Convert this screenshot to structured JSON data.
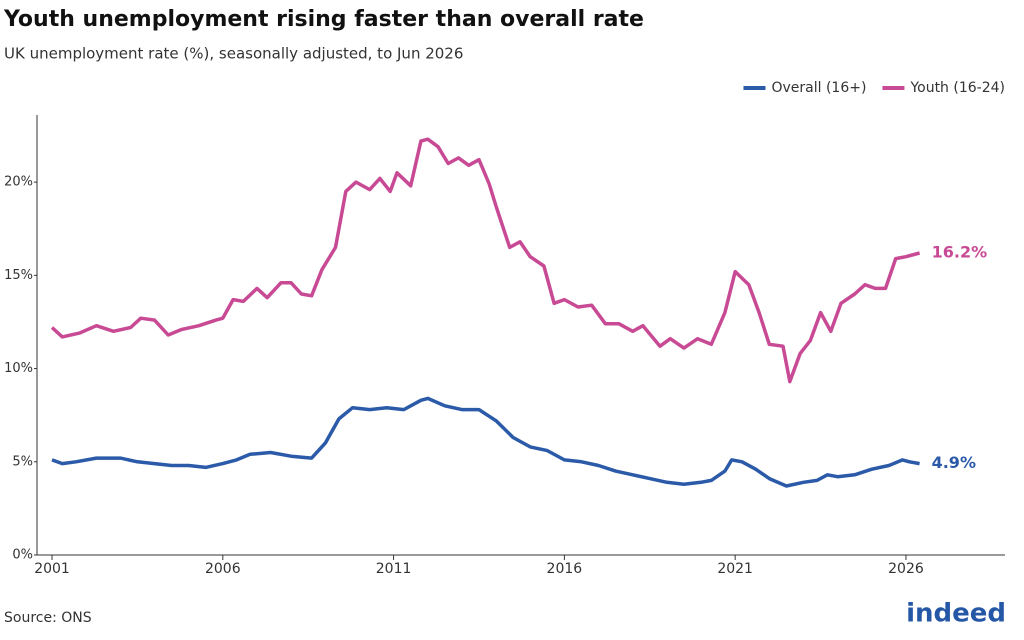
{
  "chart_data": {
    "type": "line",
    "title": "Youth unemployment rising faster than overall rate",
    "subtitle": "UK unemployment rate (%), seasonally adjusted, to Jun 2026",
    "source": "Source: ONS",
    "logo": "indeed",
    "legend": "top-right",
    "grid": false,
    "xlim": [
      2000.56,
      2028.9
    ],
    "xticks": [
      2001,
      2006,
      2011,
      2016,
      2021,
      2026
    ],
    "ylim": [
      0,
      23.6
    ],
    "yticks": [
      {
        "value": 0,
        "label": "0%"
      },
      {
        "value": 5,
        "label": "5%"
      },
      {
        "value": 10,
        "label": "10%"
      },
      {
        "value": 15,
        "label": "15%"
      },
      {
        "value": 20,
        "label": "20%"
      }
    ],
    "series": [
      {
        "name": "Overall (16+)",
        "color": "#2b5aa8",
        "end_label": "4.9%",
        "x": [
          2001.0,
          2001.3,
          2001.7,
          2002.3,
          2003.0,
          2003.5,
          2004.0,
          2004.5,
          2005.0,
          2005.5,
          2006.0,
          2006.4,
          2006.8,
          2007.4,
          2008.0,
          2008.6,
          2009.0,
          2009.4,
          2009.8,
          2010.3,
          2010.8,
          2011.3,
          2011.8,
          2012.0,
          2012.5,
          2013.0,
          2013.5,
          2014.0,
          2014.5,
          2015.0,
          2015.5,
          2016.0,
          2016.5,
          2017.0,
          2017.5,
          2018.0,
          2018.5,
          2019.0,
          2019.5,
          2020.0,
          2020.3,
          2020.7,
          2020.9,
          2021.2,
          2021.6,
          2022.0,
          2022.5,
          2023.0,
          2023.4,
          2023.7,
          2024.0,
          2024.5,
          2025.0,
          2025.5,
          2025.9,
          2026.1,
          2026.4
        ],
        "values": [
          5.1,
          4.9,
          5.0,
          5.2,
          5.2,
          5.0,
          4.9,
          4.8,
          4.8,
          4.7,
          4.9,
          5.1,
          5.4,
          5.5,
          5.3,
          5.2,
          6.0,
          7.3,
          7.9,
          7.8,
          7.9,
          7.8,
          8.3,
          8.4,
          8.0,
          7.8,
          7.8,
          7.2,
          6.3,
          5.8,
          5.6,
          5.1,
          5.0,
          4.8,
          4.5,
          4.3,
          4.1,
          3.9,
          3.8,
          3.9,
          4.0,
          4.5,
          5.1,
          5.0,
          4.6,
          4.1,
          3.7,
          3.9,
          4.0,
          4.3,
          4.2,
          4.3,
          4.6,
          4.8,
          5.1,
          5.0,
          4.9
        ]
      },
      {
        "name": "Youth (16-24)",
        "color": "#c84a94",
        "end_label": "16.2%",
        "x": [
          2001.0,
          2001.3,
          2001.8,
          2002.3,
          2002.8,
          2003.3,
          2003.6,
          2004.0,
          2004.4,
          2004.8,
          2005.3,
          2005.8,
          2006.0,
          2006.3,
          2006.6,
          2007.0,
          2007.3,
          2007.7,
          2008.0,
          2008.3,
          2008.6,
          2008.9,
          2009.3,
          2009.6,
          2009.9,
          2010.3,
          2010.6,
          2010.9,
          2011.1,
          2011.5,
          2011.8,
          2012.0,
          2012.3,
          2012.6,
          2012.9,
          2013.2,
          2013.5,
          2013.8,
          2014.0,
          2014.4,
          2014.7,
          2015.0,
          2015.4,
          2015.7,
          2016.0,
          2016.4,
          2016.8,
          2017.2,
          2017.6,
          2018.0,
          2018.3,
          2018.8,
          2019.1,
          2019.5,
          2019.9,
          2020.3,
          2020.7,
          2021.0,
          2021.4,
          2021.7,
          2022.0,
          2022.4,
          2022.6,
          2022.9,
          2023.2,
          2023.5,
          2023.8,
          2024.1,
          2024.5,
          2024.8,
          2025.1,
          2025.4,
          2025.7,
          2026.0,
          2026.4
        ],
        "values": [
          12.2,
          11.7,
          11.9,
          12.3,
          12.0,
          12.2,
          12.7,
          12.6,
          11.8,
          12.1,
          12.3,
          12.6,
          12.7,
          13.7,
          13.6,
          14.3,
          13.8,
          14.6,
          14.6,
          14.0,
          13.9,
          15.3,
          16.5,
          19.5,
          20.0,
          19.6,
          20.2,
          19.5,
          20.5,
          19.8,
          22.2,
          22.3,
          21.9,
          21.0,
          21.3,
          20.9,
          21.2,
          19.9,
          18.7,
          16.5,
          16.8,
          16.0,
          15.5,
          13.5,
          13.7,
          13.3,
          13.4,
          12.4,
          12.4,
          12.0,
          12.3,
          11.2,
          11.6,
          11.1,
          11.6,
          11.3,
          13.0,
          15.2,
          14.5,
          13.0,
          11.3,
          11.2,
          9.3,
          10.8,
          11.5,
          13.0,
          12.0,
          13.5,
          14.0,
          14.5,
          14.3,
          14.3,
          15.9,
          16.0,
          16.2
        ]
      }
    ]
  }
}
